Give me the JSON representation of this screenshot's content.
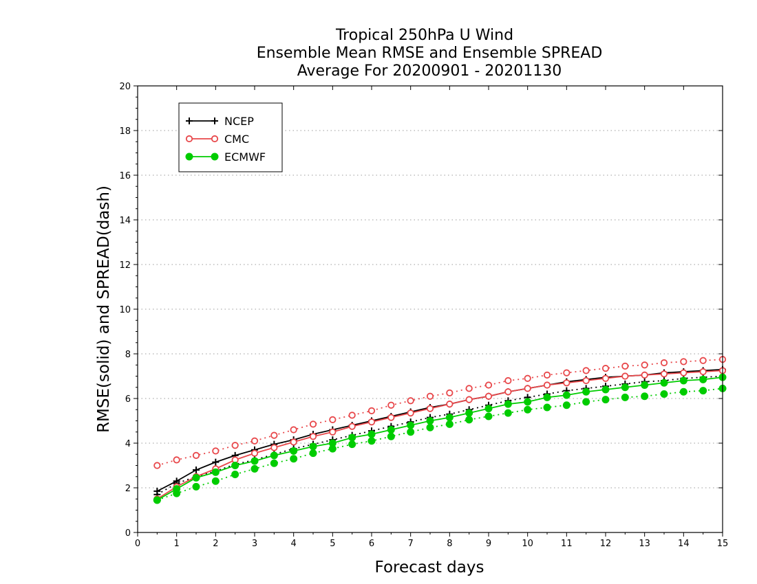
{
  "chart_data": {
    "type": "line",
    "title_lines": [
      "Tropical 250hPa U Wind",
      "Ensemble Mean RMSE and Ensemble SPREAD",
      "Average For 20200901 - 20201130"
    ],
    "xlabel": "Forecast days",
    "ylabel": "RMSE(solid) and SPREAD(dash)",
    "xlim": [
      0,
      15
    ],
    "ylim": [
      0,
      20
    ],
    "x_ticks": [
      "0",
      "1",
      "2",
      "3",
      "4",
      "5",
      "6",
      "7",
      "8",
      "9",
      "10",
      "11",
      "12",
      "13",
      "14",
      "15"
    ],
    "y_ticks": [
      "0",
      "2",
      "4",
      "6",
      "8",
      "10",
      "12",
      "14",
      "16",
      "18",
      "20"
    ],
    "grid": "horizontal dotted",
    "legend_position": "top-left",
    "x": [
      0.5,
      1,
      1.5,
      2,
      2.5,
      3,
      3.5,
      4,
      4.5,
      5,
      5.5,
      6,
      6.5,
      7,
      7.5,
      8,
      8.5,
      9,
      9.5,
      10,
      10.5,
      11,
      11.5,
      12,
      12.5,
      13,
      13.5,
      14,
      14.5,
      15
    ],
    "series": [
      {
        "name": "NCEP",
        "color": "#000000",
        "marker": "plus",
        "rmse": [
          1.85,
          2.3,
          2.8,
          3.15,
          3.45,
          3.7,
          3.95,
          4.15,
          4.4,
          4.6,
          4.8,
          5.0,
          5.2,
          5.4,
          5.6,
          5.75,
          5.95,
          6.1,
          6.3,
          6.45,
          6.6,
          6.75,
          6.85,
          6.95,
          7.0,
          7.05,
          7.15,
          7.2,
          7.25,
          7.3
        ],
        "spread": [
          1.7,
          2.2,
          2.5,
          2.75,
          3.05,
          3.25,
          3.5,
          3.75,
          3.95,
          4.15,
          4.35,
          4.55,
          4.75,
          4.95,
          5.15,
          5.3,
          5.5,
          5.7,
          5.9,
          6.05,
          6.2,
          6.35,
          6.45,
          6.55,
          6.65,
          6.75,
          6.8,
          6.9,
          6.95,
          7.0
        ]
      },
      {
        "name": "CMC",
        "color": "#e8474a",
        "marker": "circle-open",
        "rmse": [
          1.5,
          2.05,
          2.5,
          2.85,
          3.25,
          3.55,
          3.8,
          4.05,
          4.3,
          4.5,
          4.75,
          4.95,
          5.15,
          5.35,
          5.55,
          5.75,
          5.95,
          6.1,
          6.3,
          6.45,
          6.6,
          6.7,
          6.8,
          6.9,
          7.0,
          7.05,
          7.1,
          7.15,
          7.2,
          7.25
        ],
        "spread": [
          3.0,
          3.25,
          3.45,
          3.65,
          3.9,
          4.1,
          4.35,
          4.6,
          4.85,
          5.05,
          5.25,
          5.45,
          5.7,
          5.9,
          6.1,
          6.25,
          6.45,
          6.6,
          6.8,
          6.9,
          7.05,
          7.15,
          7.25,
          7.35,
          7.45,
          7.5,
          7.6,
          7.65,
          7.7,
          7.75
        ]
      },
      {
        "name": "ECMWF",
        "color": "#00cc00",
        "marker": "circle-filled",
        "rmse": [
          1.45,
          1.95,
          2.45,
          2.7,
          3.0,
          3.2,
          3.45,
          3.65,
          3.85,
          4.0,
          4.25,
          4.4,
          4.6,
          4.8,
          5.0,
          5.15,
          5.35,
          5.55,
          5.75,
          5.85,
          6.05,
          6.15,
          6.3,
          6.4,
          6.5,
          6.6,
          6.7,
          6.8,
          6.85,
          6.95
        ],
        "spread": [
          1.45,
          1.75,
          2.05,
          2.3,
          2.6,
          2.85,
          3.1,
          3.3,
          3.55,
          3.75,
          3.95,
          4.1,
          4.3,
          4.5,
          4.7,
          4.85,
          5.05,
          5.2,
          5.35,
          5.5,
          5.6,
          5.7,
          5.85,
          5.95,
          6.05,
          6.1,
          6.2,
          6.3,
          6.35,
          6.45
        ]
      }
    ]
  }
}
